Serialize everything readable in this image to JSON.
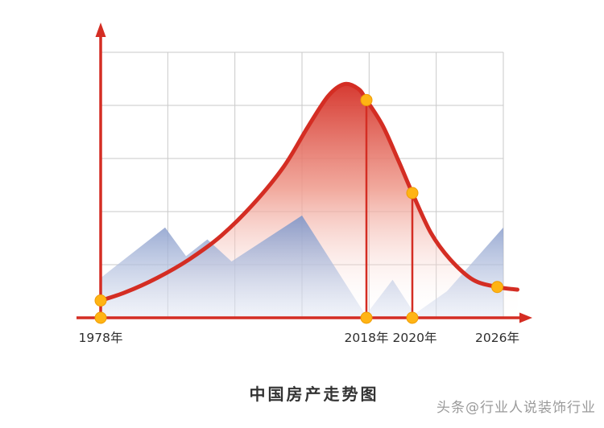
{
  "watermark": "头条@行业人说装饰行业",
  "chart_data": {
    "type": "line",
    "title": "中国房产走势图",
    "note": "schematic trend chart; axes unlabeled, y relative 0-1, x relative 0-1 of plot width",
    "grid": {
      "cols": 6,
      "rows": 5,
      "on": true
    },
    "x_ticks": [
      {
        "label": "1978年",
        "pos": 0.0
      },
      {
        "label": "2018年",
        "pos": 0.66
      },
      {
        "label": "2020年",
        "pos": 0.78
      },
      {
        "label": "2026年",
        "pos": 0.985
      }
    ],
    "series": [
      {
        "name": "house-price-trend",
        "type": "smooth-line",
        "color": "#d42d23",
        "points": [
          [
            0.0,
            0.065
          ],
          [
            0.06,
            0.095
          ],
          [
            0.14,
            0.15
          ],
          [
            0.22,
            0.22
          ],
          [
            0.3,
            0.31
          ],
          [
            0.38,
            0.43
          ],
          [
            0.455,
            0.57
          ],
          [
            0.515,
            0.72
          ],
          [
            0.565,
            0.835
          ],
          [
            0.605,
            0.88
          ],
          [
            0.64,
            0.862
          ],
          [
            0.66,
            0.82
          ],
          [
            0.7,
            0.725
          ],
          [
            0.74,
            0.59
          ],
          [
            0.774,
            0.47
          ],
          [
            0.82,
            0.32
          ],
          [
            0.868,
            0.22
          ],
          [
            0.925,
            0.143
          ],
          [
            0.985,
            0.116
          ],
          [
            1.035,
            0.106
          ]
        ]
      },
      {
        "name": "background-mountains",
        "type": "polygon",
        "color_top": "#8297c8",
        "color_bottom": "#e3e8f4",
        "points": [
          [
            0.0,
            0.15
          ],
          [
            0.05,
            0.21
          ],
          [
            0.16,
            0.34
          ],
          [
            0.212,
            0.232
          ],
          [
            0.265,
            0.295
          ],
          [
            0.325,
            0.212
          ],
          [
            0.5,
            0.385
          ],
          [
            0.658,
            0.01
          ],
          [
            0.725,
            0.143
          ],
          [
            0.78,
            0.015
          ],
          [
            0.86,
            0.1
          ],
          [
            1.0,
            0.34
          ]
        ]
      }
    ],
    "markers": {
      "dot_color": "#ffb414",
      "dot_edge": "#ef9c05",
      "vlines": [
        {
          "pos": 0.66,
          "from": 0.82
        },
        {
          "pos": 0.774,
          "from": 0.47
        }
      ],
      "dots": [
        [
          0.0,
          0.065
        ],
        [
          0.0,
          0.0
        ],
        [
          0.66,
          0.82
        ],
        [
          0.66,
          0.0
        ],
        [
          0.774,
          0.47
        ],
        [
          0.774,
          0.0
        ],
        [
          0.985,
          0.116
        ]
      ]
    },
    "colors": {
      "axis": "#d42d23",
      "grid": "#c9c9c9",
      "area_top": "#d5342b",
      "area_mid": "#ef9a8c"
    }
  }
}
